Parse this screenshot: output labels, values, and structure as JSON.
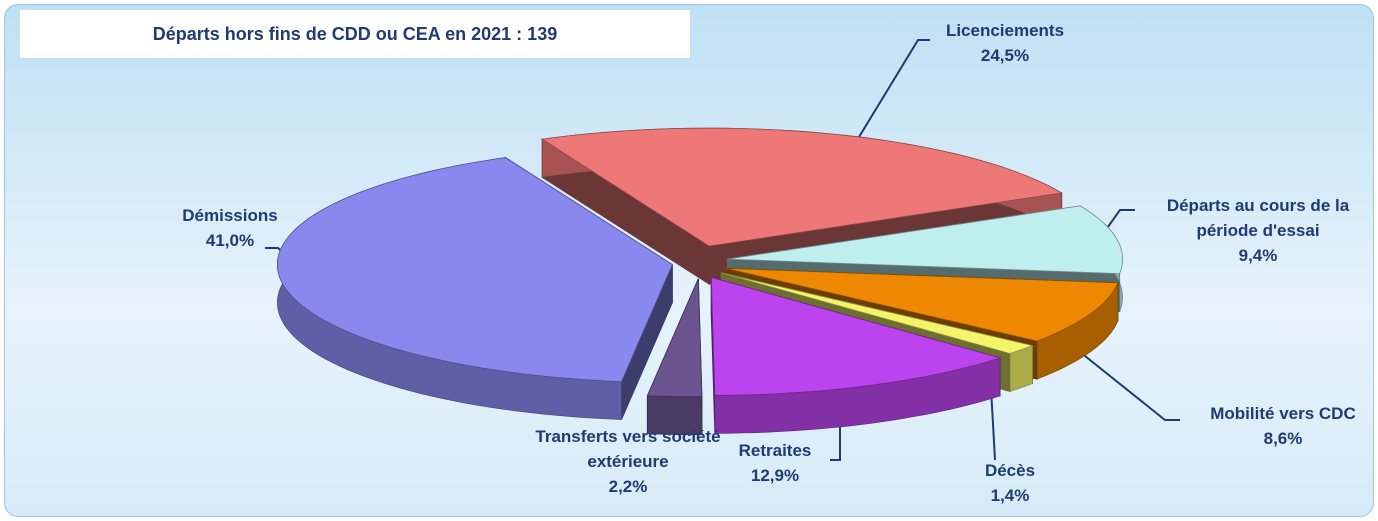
{
  "chart_data": {
    "type": "pie3d",
    "title": "Départs hors fins de CDD ou CEA en 2021 : 139",
    "categories": [
      "Licenciements",
      "Départs au cours de la période d'essai",
      "Mobilité vers CDC",
      "Décès",
      "Retraites",
      "Transferts vers société extérieure",
      "Démissions"
    ],
    "values": [
      24.5,
      9.4,
      8.6,
      1.4,
      12.9,
      2.2,
      41.0
    ],
    "value_labels": [
      "24,5%",
      "9,4%",
      "8,6%",
      "1,4%",
      "12,9%",
      "2,2%",
      "41,0%"
    ],
    "colors": [
      "#ee7777",
      "#bfeeee",
      "#ee8800",
      "#f4f46a",
      "#bb44ee",
      "#6a5590",
      "#8888ee"
    ]
  }
}
